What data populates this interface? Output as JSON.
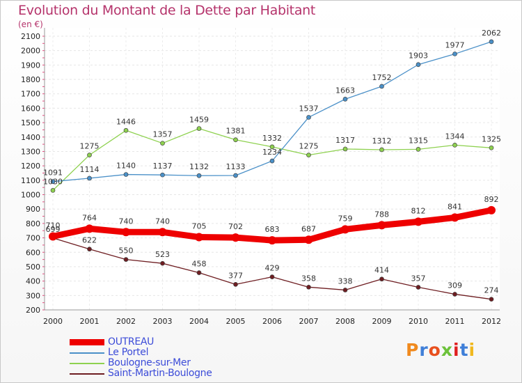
{
  "title": "Evolution du Montant de la Dette par Habitant",
  "subtitle": "(en €)",
  "logo_text": "Proxiti",
  "chart_data": {
    "type": "line",
    "title": "Evolution du Montant de la Dette par Habitant",
    "ylabel": "(en €)",
    "xlabel": "",
    "ylim": [
      200,
      2100
    ],
    "y_ticks": [
      200,
      300,
      400,
      500,
      600,
      700,
      800,
      900,
      1000,
      1100,
      1200,
      1300,
      1400,
      1500,
      1600,
      1700,
      1800,
      1900,
      2000,
      2100
    ],
    "categories": [
      "2000",
      "2001",
      "2002",
      "2003",
      "2004",
      "2005",
      "2006",
      "2007",
      "2008",
      "2009",
      "2010",
      "2011",
      "2012"
    ],
    "legend_position": "bottom-left",
    "series": [
      {
        "name": "Saint-Martin-Boulogne",
        "color": "#6e1d21",
        "values": [
          699,
          622,
          550,
          523,
          458,
          377,
          429,
          358,
          338,
          414,
          357,
          309,
          274
        ]
      },
      {
        "name": "Boulogne-sur-Mer",
        "color": "#8ed14f",
        "values": [
          1030,
          1275,
          1446,
          1357,
          1459,
          1381,
          1332,
          1275,
          1317,
          1312,
          1315,
          1344,
          1325
        ]
      },
      {
        "name": "Le Portel",
        "color": "#4a90c8",
        "values": [
          1091,
          1114,
          1140,
          1137,
          1132,
          1133,
          1234,
          1537,
          1663,
          1752,
          1903,
          1977,
          2062
        ]
      },
      {
        "name": "OUTREAU",
        "color": "#ee0000",
        "values": [
          710,
          764,
          740,
          740,
          705,
          702,
          683,
          687,
          759,
          788,
          812,
          841,
          892
        ]
      }
    ],
    "data_labels": {
      "Saint-Martin-Boulogne": [
        "699",
        "622",
        "550",
        "523",
        "458",
        "377",
        "429",
        "358",
        "338",
        "414",
        "357",
        "309",
        "274"
      ],
      "Boulogne-sur-Mer": [
        "1030",
        "1275",
        "1446",
        "1357",
        "1459",
        "1381",
        "1332",
        "1275",
        "1317",
        "1312",
        "1315",
        "1344",
        "1325"
      ],
      "Le Portel": [
        "1091",
        "1114",
        "1140",
        "1137",
        "1132",
        "1133",
        "1234",
        "1537",
        "1663",
        "1752",
        "1903",
        "1977",
        "2062"
      ],
      "OUTREAU": [
        "710",
        "764",
        "740",
        "740",
        "705",
        "702",
        "683",
        "687",
        "759",
        "788",
        "812",
        "841",
        "892"
      ]
    }
  },
  "legend": [
    {
      "label": "OUTREAU",
      "color": "#ee0000"
    },
    {
      "label": "Le Portel",
      "color": "#4a90c8"
    },
    {
      "label": "Boulogne-sur-Mer",
      "color": "#8ed14f"
    },
    {
      "label": "Saint-Martin-Boulogne",
      "color": "#6e1d21"
    }
  ]
}
